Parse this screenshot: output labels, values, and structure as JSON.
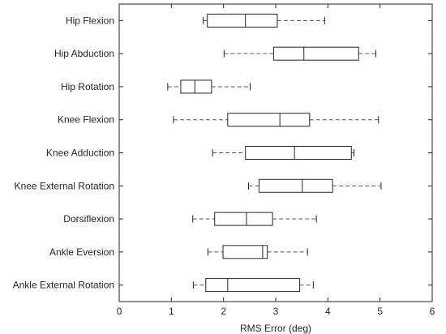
{
  "chart_data": {
    "type": "boxplot",
    "orientation": "horizontal",
    "xlabel": "RMS Error (deg)",
    "xlim": [
      0,
      6
    ],
    "xticks": [
      "0",
      "1",
      "2",
      "3",
      "4",
      "5",
      "6"
    ],
    "grid": false,
    "categories": [
      "Hip Flexion",
      "Hip Abduction",
      "Hip Rotation",
      "Knee Flexion",
      "Knee Adduction",
      "Knee External Rotation",
      "Dorsiflexion",
      "Ankle Eversion",
      "Ankle External Rotation"
    ],
    "boxes": [
      {
        "min": 1.61,
        "q1": 1.69,
        "median": 2.42,
        "q3": 3.03,
        "max": 3.94
      },
      {
        "min": 2.01,
        "q1": 2.96,
        "median": 3.54,
        "q3": 4.59,
        "max": 4.92
      },
      {
        "min": 0.93,
        "q1": 1.18,
        "median": 1.45,
        "q3": 1.77,
        "max": 2.51
      },
      {
        "min": 1.04,
        "q1": 2.08,
        "median": 3.08,
        "q3": 3.65,
        "max": 4.97
      },
      {
        "min": 1.79,
        "q1": 2.42,
        "median": 3.36,
        "q3": 4.45,
        "max": 4.5
      },
      {
        "min": 2.48,
        "q1": 2.68,
        "median": 3.51,
        "q3": 4.09,
        "max": 5.02
      },
      {
        "min": 1.41,
        "q1": 1.83,
        "median": 2.44,
        "q3": 2.94,
        "max": 3.78
      },
      {
        "min": 1.7,
        "q1": 1.99,
        "median": 2.75,
        "q3": 2.84,
        "max": 3.61
      },
      {
        "min": 1.42,
        "q1": 1.66,
        "median": 2.08,
        "q3": 3.46,
        "max": 3.72
      }
    ],
    "colors": {
      "stroke": "#262626",
      "whisker": "#555555",
      "background": "#ffffff"
    }
  }
}
